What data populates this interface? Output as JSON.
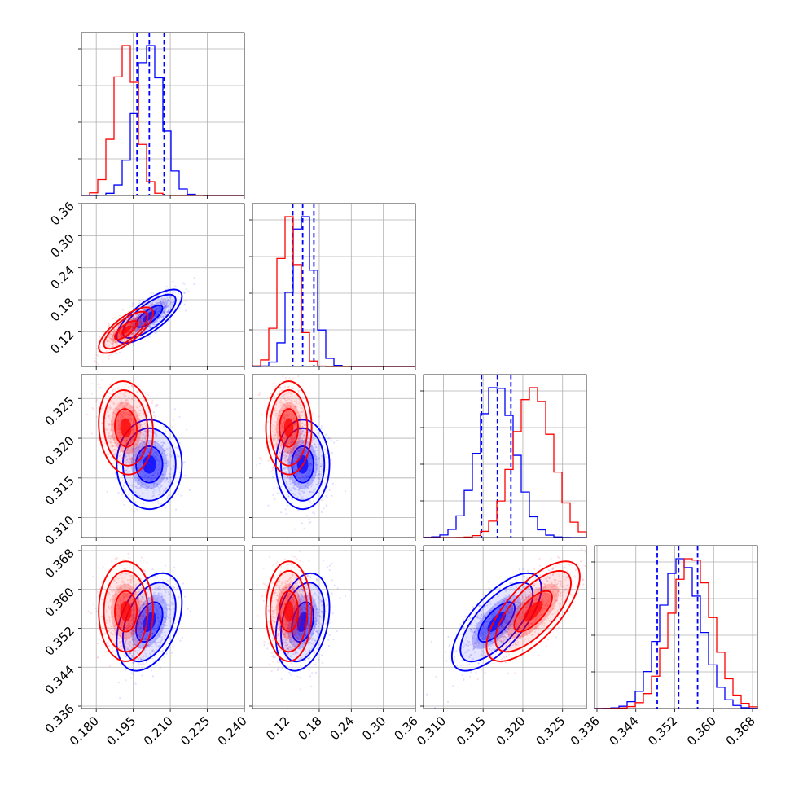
{
  "chart_data": {
    "type": "corner",
    "parameters": [
      {
        "range": [
          0.174,
          0.24
        ],
        "ticks": [
          "0.180",
          "0.195",
          "0.210",
          "0.225",
          "0.240"
        ],
        "tick_values": [
          0.18,
          0.195,
          0.21,
          0.225,
          0.24
        ]
      },
      {
        "range": [
          0.055,
          0.36
        ],
        "ticks": [
          "0.12",
          "0.18",
          "0.24",
          "0.30",
          "0.36"
        ],
        "tick_values": [
          0.12,
          0.18,
          0.24,
          0.3,
          0.36
        ]
      },
      {
        "range": [
          0.3075,
          0.328
        ],
        "ticks": [
          "0.310",
          "0.315",
          "0.320",
          "0.325"
        ],
        "tick_values": [
          0.31,
          0.315,
          0.32,
          0.325
        ]
      },
      {
        "range": [
          0.3355,
          0.369
        ],
        "ticks": [
          "0.336",
          "0.344",
          "0.352",
          "0.360",
          "0.368"
        ],
        "tick_values": [
          0.336,
          0.344,
          0.352,
          0.36,
          0.368
        ]
      }
    ],
    "grid": true,
    "colors": {
      "blue": "#0000ff",
      "red": "#ff0000"
    },
    "series": [
      {
        "color": "#0000ff",
        "mean": [
          0.2015,
          0.149,
          0.3167,
          0.3533
        ],
        "std": [
          0.0054,
          0.0205,
          0.0023,
          0.0041
        ],
        "quantiles": [
          [
            0.1965,
            0.2015,
            0.2075
          ],
          [
            0.1305,
            0.149,
            0.17
          ],
          [
            0.3148,
            0.3168,
            0.3185
          ],
          [
            0.3484,
            0.3528,
            0.3567
          ]
        ],
        "correlations": {
          "0-1": 0.75,
          "0-2": 0.0,
          "0-3": 0.4,
          "1-2": 0.0,
          "1-3": 0.3,
          "2-3": 0.7
        }
      },
      {
        "color": "#ff0000",
        "mean": [
          0.192,
          0.123,
          0.3213,
          0.3555
        ],
        "std": [
          0.0045,
          0.0175,
          0.0024,
          0.0042
        ],
        "quantiles": null,
        "correlations": {
          "0-1": 0.75,
          "0-2": -0.1,
          "0-3": 0.0,
          "1-2": 0.0,
          "1-3": 0.0,
          "2-3": 0.7
        }
      }
    ]
  }
}
